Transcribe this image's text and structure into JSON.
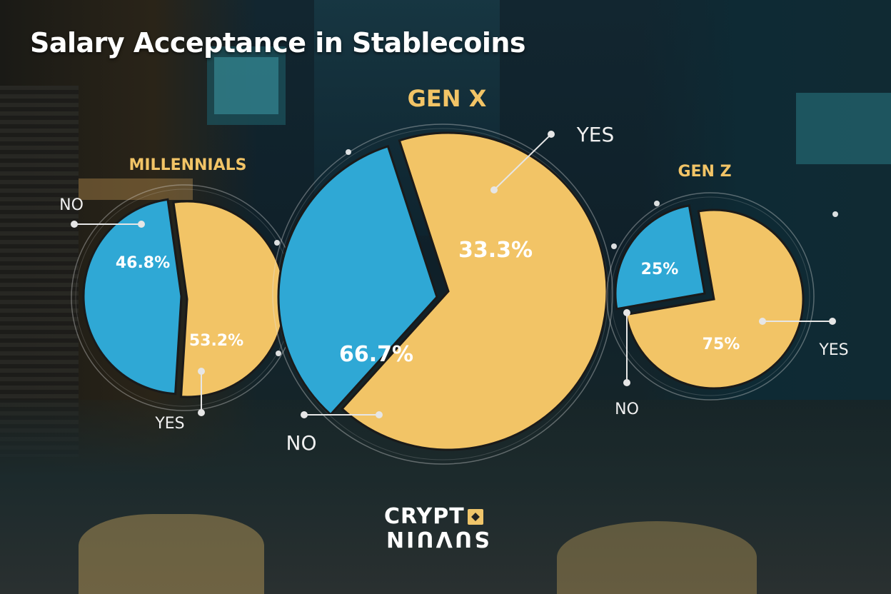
{
  "title": "Salary Acceptance in Stablecoins",
  "colors": {
    "yes": "#f2c466",
    "no": "#2fa8d5",
    "group_label": "#f2c466",
    "leader": "#e6e6e6"
  },
  "logo": {
    "line1": "CRYPT",
    "line2": "SUVUIN"
  },
  "chart_data": [
    {
      "type": "pie",
      "title": "MILLENNIALS",
      "slices": [
        {
          "label": "NO",
          "value": 46.8,
          "display": "46.8%"
        },
        {
          "label": "YES",
          "value": 53.2,
          "display": "53.2%"
        }
      ]
    },
    {
      "type": "pie",
      "title": "GEN X",
      "slices": [
        {
          "label": "NO",
          "value": 33.3,
          "display": "33.3%"
        },
        {
          "label": "YES",
          "value": 66.7,
          "display": "66.7%"
        }
      ]
    },
    {
      "type": "pie",
      "title": "GEN Z",
      "slices": [
        {
          "label": "NO",
          "value": 25,
          "display": "25%"
        },
        {
          "label": "YES",
          "value": 75,
          "display": "75%"
        }
      ]
    }
  ]
}
